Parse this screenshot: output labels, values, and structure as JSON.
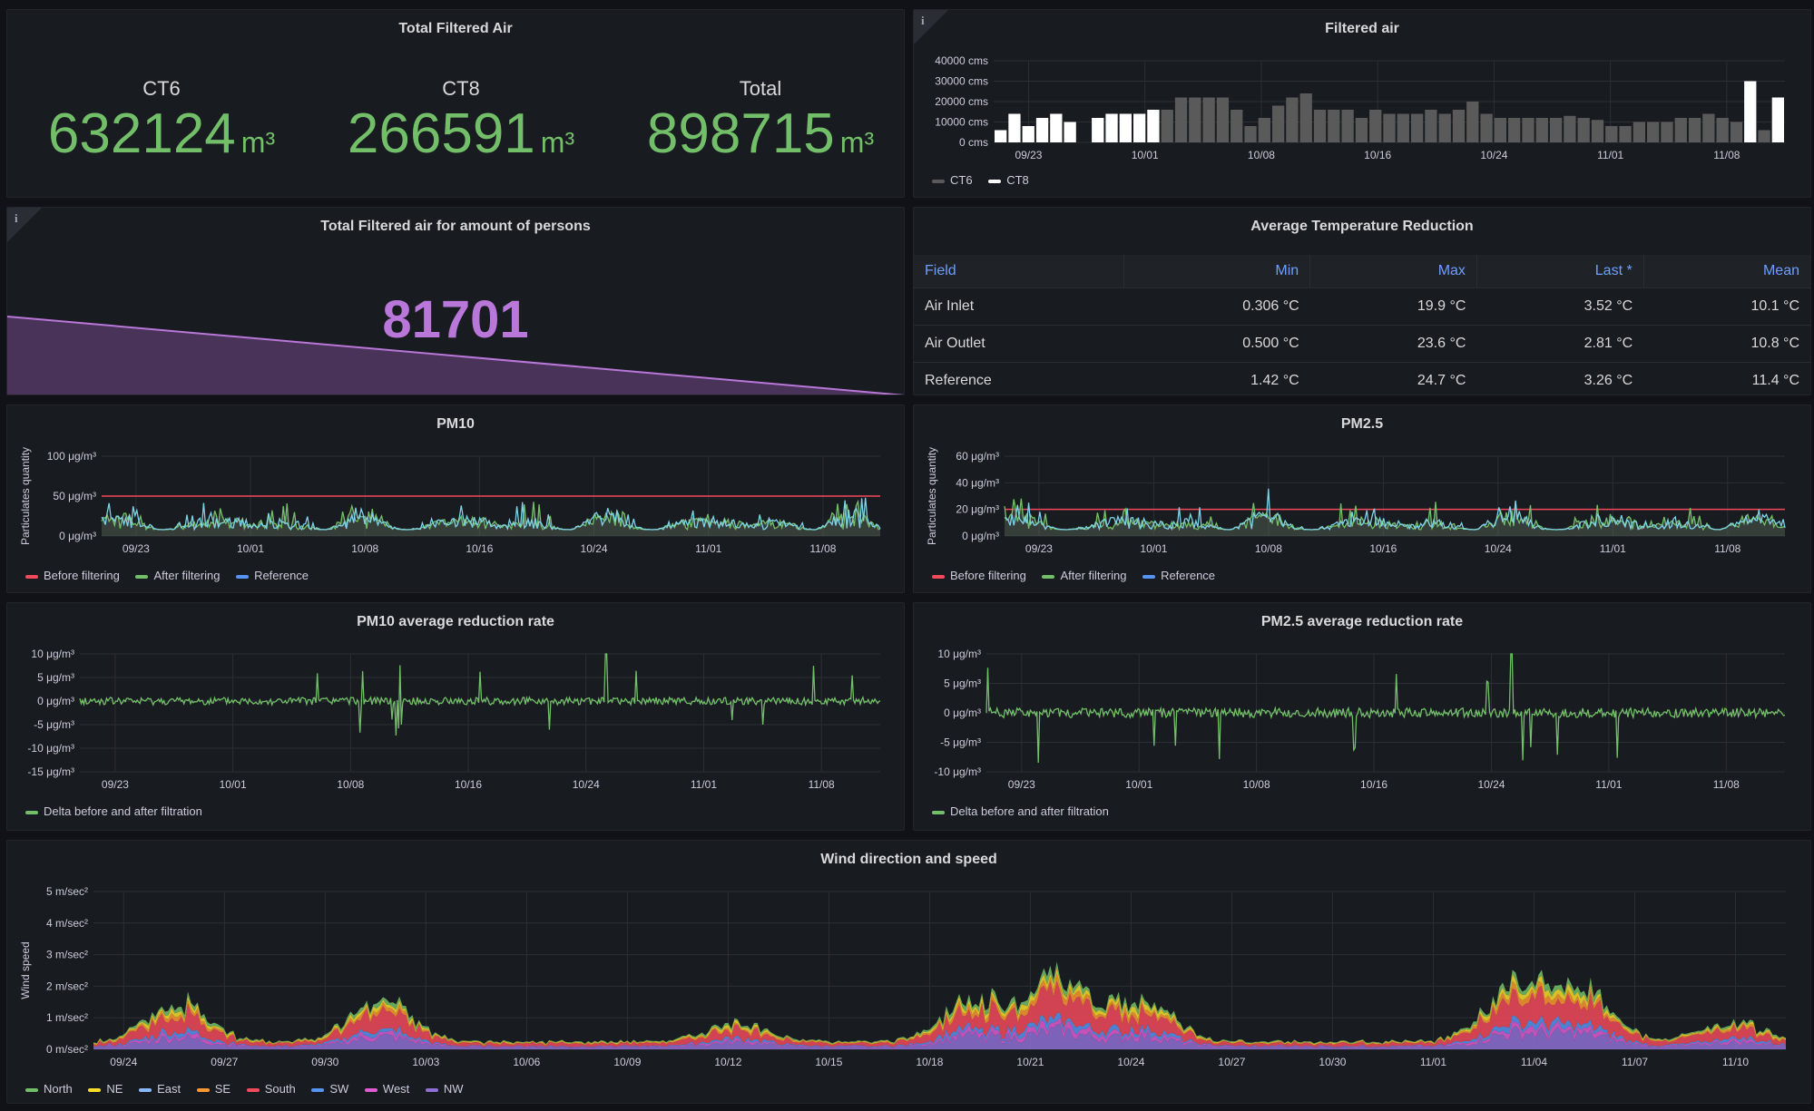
{
  "colors": {
    "green": "#73bf69",
    "purple": "#b877d9",
    "blue": "#6e9fff",
    "red": "#f2495c",
    "cyan": "#5794f2",
    "white": "#ffffff",
    "gray": "#5a5a5a"
  },
  "total_air": {
    "title": "Total Filtered Air",
    "stats": [
      {
        "label": "CT6",
        "value": "632124",
        "unit": "m³"
      },
      {
        "label": "CT8",
        "value": "266591",
        "unit": "m³"
      },
      {
        "label": "Total",
        "value": "898715",
        "unit": "m³"
      }
    ]
  },
  "filtered_air": {
    "title": "Filtered air",
    "info_icon": "i",
    "legend": [
      {
        "name": "CT6",
        "color": "#5a5a5a"
      },
      {
        "name": "CT8",
        "color": "#ffffff"
      }
    ]
  },
  "persons": {
    "title": "Total Filtered air for amount of persons",
    "info_icon": "i",
    "value": "81701"
  },
  "temperature": {
    "title": "Average Temperature Reduction",
    "columns": [
      "Field",
      "Min",
      "Max",
      "Last *",
      "Mean"
    ],
    "rows": [
      [
        "Air Inlet",
        "0.306 °C",
        "19.9 °C",
        "3.52 °C",
        "10.1 °C"
      ],
      [
        "Air Outlet",
        "0.500 °C",
        "23.6 °C",
        "2.81 °C",
        "10.8 °C"
      ],
      [
        "Reference",
        "1.42 °C",
        "24.7 °C",
        "3.26 °C",
        "11.4 °C"
      ]
    ]
  },
  "pm10": {
    "title": "PM10",
    "legend": [
      {
        "name": "Before filtering",
        "color": "#f2495c"
      },
      {
        "name": "After filtering",
        "color": "#73bf69"
      },
      {
        "name": "Reference",
        "color": "#5794f2"
      }
    ]
  },
  "pm25": {
    "title": "PM2.5",
    "legend": [
      {
        "name": "Before filtering",
        "color": "#f2495c"
      },
      {
        "name": "After filtering",
        "color": "#73bf69"
      },
      {
        "name": "Reference",
        "color": "#5794f2"
      }
    ]
  },
  "pm10_rate": {
    "title": "PM10 average reduction rate",
    "legend": [
      {
        "name": "Delta before and after filtration",
        "color": "#73bf69"
      }
    ]
  },
  "pm25_rate": {
    "title": "PM2.5 average reduction rate",
    "legend": [
      {
        "name": "Delta before and after filtration",
        "color": "#73bf69"
      }
    ]
  },
  "wind": {
    "title": "Wind direction and speed",
    "legend": [
      {
        "name": "North",
        "color": "#73bf69"
      },
      {
        "name": "NE",
        "color": "#fade2a"
      },
      {
        "name": "East",
        "color": "#5794f2"
      },
      {
        "name": "SE",
        "color": "#ff9830"
      },
      {
        "name": "South",
        "color": "#f2495c"
      },
      {
        "name": "SW",
        "color": "#5794f2"
      },
      {
        "name": "West",
        "color": "#b877d9"
      },
      {
        "name": "NW",
        "color": "#8f6fd6"
      }
    ]
  },
  "chart_data": [
    {
      "id": "filtered_air",
      "type": "bar",
      "title": "Filtered air",
      "ylim": [
        0,
        40000
      ],
      "yticks": [
        "40000 cms",
        "30000 cms",
        "20000 cms",
        "10000 cms",
        "0 cms"
      ],
      "xticks": [
        "09/23",
        "10/01",
        "10/08",
        "10/16",
        "10/24",
        "11/01",
        "11/08"
      ],
      "series": [
        {
          "name": "CT6",
          "values": [
            0,
            0,
            0,
            0,
            0,
            0,
            0,
            0,
            0,
            0,
            0,
            0,
            16000,
            22000,
            22000,
            22000,
            22000,
            16000,
            8000,
            12000,
            18000,
            22000,
            24000,
            16000,
            16000,
            16000,
            12000,
            16000,
            14000,
            14000,
            14000,
            16000,
            14000,
            16000,
            20000,
            14000,
            12000,
            12000,
            12000,
            12000,
            12000,
            13000,
            12000,
            11000,
            8000,
            8000,
            10000,
            10000,
            10000,
            12000,
            12000,
            14000,
            12000,
            10000,
            4000,
            6000,
            6000
          ]
        },
        {
          "name": "CT8",
          "values": [
            6000,
            14000,
            8000,
            12000,
            14000,
            10000,
            0,
            12000,
            14000,
            14000,
            14000,
            16000,
            0,
            0,
            0,
            0,
            0,
            0,
            0,
            0,
            0,
            0,
            0,
            0,
            0,
            0,
            0,
            0,
            0,
            0,
            0,
            0,
            0,
            0,
            0,
            0,
            0,
            0,
            0,
            0,
            0,
            0,
            0,
            0,
            0,
            0,
            0,
            0,
            0,
            0,
            0,
            0,
            0,
            0,
            30000,
            0,
            22000
          ]
        }
      ]
    },
    {
      "id": "pm10",
      "type": "line",
      "title": "PM10",
      "ylabel": "Particulates quantity",
      "ylim": [
        0,
        100
      ],
      "yticks": [
        "100 μg/m³",
        "50 μg/m³",
        "0 μg/m³"
      ],
      "xticks": [
        "09/23",
        "10/01",
        "10/08",
        "10/16",
        "10/24",
        "11/01",
        "11/08"
      ],
      "threshold": 50
    },
    {
      "id": "pm25",
      "type": "line",
      "title": "PM2.5",
      "ylabel": "Particulates quantity",
      "ylim": [
        0,
        60
      ],
      "yticks": [
        "60 μg/m³",
        "40 μg/m³",
        "20 μg/m³",
        "0 μg/m³"
      ],
      "xticks": [
        "09/23",
        "10/01",
        "10/08",
        "10/16",
        "10/24",
        "11/01",
        "11/08"
      ],
      "threshold": 20
    },
    {
      "id": "pm10_rate",
      "type": "line",
      "title": "PM10 average reduction rate",
      "ylim": [
        -15,
        10
      ],
      "yticks": [
        "10 μg/m³",
        "5 μg/m³",
        "0 μg/m³",
        "-5 μg/m³",
        "-10 μg/m³",
        "-15 μg/m³"
      ],
      "xticks": [
        "09/23",
        "10/01",
        "10/08",
        "10/16",
        "10/24",
        "11/01",
        "11/08"
      ]
    },
    {
      "id": "pm25_rate",
      "type": "line",
      "title": "PM2.5 average reduction rate",
      "ylim": [
        -10,
        10
      ],
      "yticks": [
        "10 μg/m³",
        "5 μg/m³",
        "0 μg/m³",
        "-5 μg/m³",
        "-10 μg/m³"
      ],
      "xticks": [
        "09/23",
        "10/01",
        "10/08",
        "10/16",
        "10/24",
        "11/01",
        "11/08"
      ]
    },
    {
      "id": "wind",
      "type": "area",
      "title": "Wind direction and speed",
      "ylabel": "Wind speed",
      "ylim": [
        0,
        5
      ],
      "yticks": [
        "5 m/sec²",
        "4 m/sec²",
        "3 m/sec²",
        "2 m/sec²",
        "1 m/sec²",
        "0 m/sec²"
      ],
      "xticks": [
        "09/24",
        "09/27",
        "09/30",
        "10/03",
        "10/06",
        "10/09",
        "10/12",
        "10/15",
        "10/18",
        "10/21",
        "10/24",
        "10/27",
        "10/30",
        "11/01",
        "11/04",
        "11/07",
        "11/10"
      ]
    }
  ]
}
